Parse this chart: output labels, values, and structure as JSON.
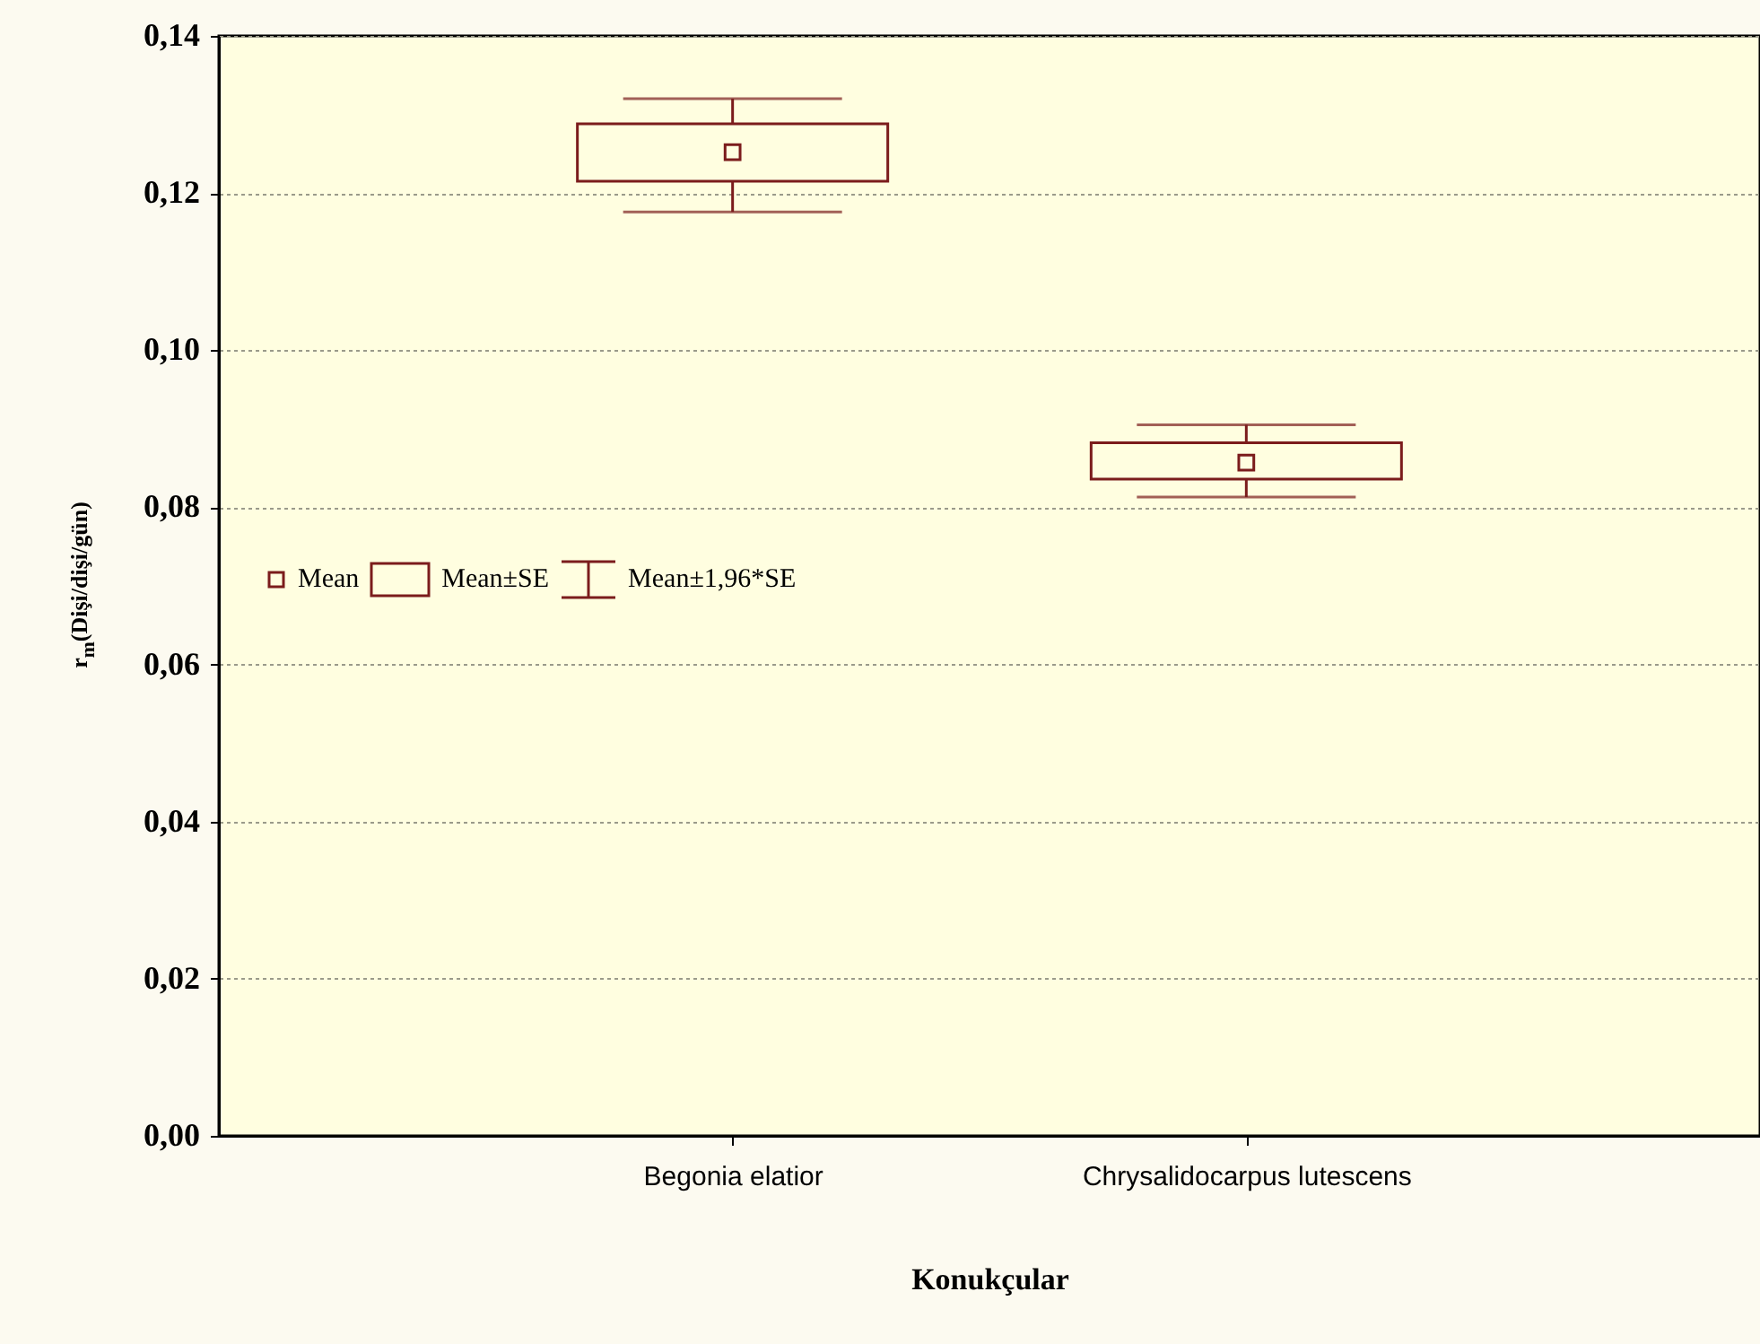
{
  "chart_data": {
    "type": "box",
    "xlabel": "Konukçular",
    "ylabel": "r$_{m}$(Dişi/dişi/gün)",
    "categories": [
      "Begonia elatior",
      "Chrysalidocarpus lutescens"
    ],
    "series": [
      {
        "color": "#7b1c1c",
        "boxes": [
          {
            "low": 0.1176,
            "q1": 0.1215,
            "median": 0.1252,
            "q3": 0.1288,
            "high": 0.132
          },
          {
            "low": 0.0813,
            "q1": 0.0836,
            "median": 0.0857,
            "q3": 0.0882,
            "high": 0.0905
          }
        ]
      }
    ],
    "ylim": [
      0,
      0.14
    ],
    "yticks": [
      {
        "value": 0,
        "label": "0,00"
      },
      {
        "value": 0.02,
        "label": "0,02"
      },
      {
        "value": 0.04,
        "label": "0,04"
      },
      {
        "value": 0.06,
        "label": "0,06"
      },
      {
        "value": 0.08,
        "label": "0,08"
      },
      {
        "value": 0.1,
        "label": "0,10"
      },
      {
        "value": 0.12,
        "label": "0,12"
      },
      {
        "value": 0.14,
        "label": "0,14"
      }
    ],
    "grid": "y",
    "marker": "square",
    "annotations": [
      "Mean",
      "Mean±SE",
      "Mean±1,96*SE"
    ]
  }
}
